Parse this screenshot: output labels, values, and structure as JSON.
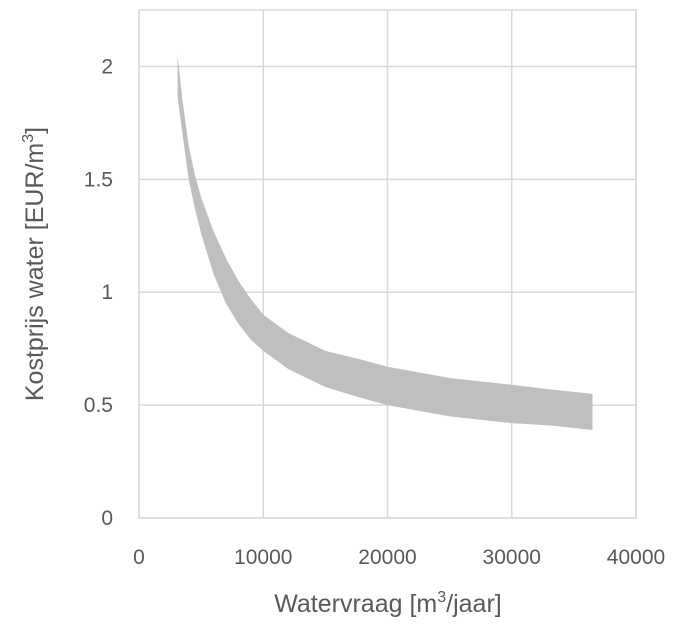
{
  "chart_data": {
    "type": "area",
    "title": "",
    "xlabel": {
      "before": "Watervraag [m",
      "sup": "3",
      "after": "/jaar]"
    },
    "ylabel": {
      "before": "Kostprijs water [EUR/m",
      "sup": "3",
      "after": "]"
    },
    "xlim": [
      0,
      40000
    ],
    "ylim": [
      0,
      2.25
    ],
    "x_ticks": [
      "0",
      "10000",
      "20000",
      "30000",
      "40000"
    ],
    "y_ticks": [
      "0",
      "0.5",
      "1",
      "1.5",
      "2"
    ],
    "grid": true,
    "band_color": "#bfbfbf",
    "series": [
      {
        "x": [
          3100,
          3500,
          4000,
          4500,
          5000,
          6000,
          7000,
          8000,
          9000,
          10000,
          12000,
          15000,
          18000,
          20000,
          25000,
          30000,
          33000,
          36500
        ],
        "upper": [
          2.05,
          1.85,
          1.65,
          1.52,
          1.42,
          1.27,
          1.15,
          1.05,
          0.97,
          0.9,
          0.82,
          0.74,
          0.7,
          0.67,
          0.62,
          0.59,
          0.57,
          0.55
        ],
        "lower": [
          1.87,
          1.7,
          1.5,
          1.37,
          1.26,
          1.08,
          0.95,
          0.86,
          0.79,
          0.74,
          0.66,
          0.58,
          0.53,
          0.5,
          0.45,
          0.42,
          0.41,
          0.39
        ]
      }
    ]
  }
}
